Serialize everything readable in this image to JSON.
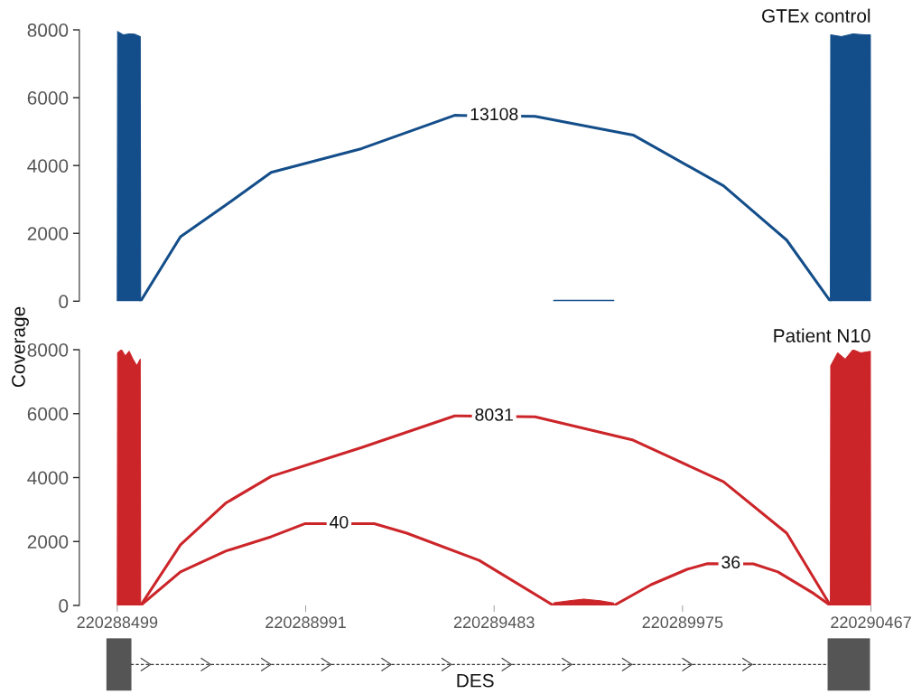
{
  "chart_data": [
    {
      "type": "area",
      "title": "GTEx control",
      "ylabel": "Coverage",
      "xlim": [
        220288400,
        220290467
      ],
      "ylim": [
        0,
        8000
      ],
      "yticks": [
        0,
        2000,
        4000,
        6000,
        8000
      ],
      "tick_labels": "y",
      "series": [
        {
          "color": "#144e8a",
          "x": [
            220288499,
            220288500,
            220288515,
            220288530,
            220288545,
            220288559,
            220288560
          ],
          "values": [
            0,
            7950,
            7850,
            7880,
            7870,
            7800,
            0
          ]
        },
        {
          "color": "#144e8a",
          "x": [
            220289638,
            220289639,
            220289720,
            220289795,
            220289796
          ],
          "values": [
            0,
            30,
            30,
            30,
            0
          ]
        },
        {
          "color": "#144e8a",
          "x": [
            220290361,
            220290362,
            220290390,
            220290420,
            220290450,
            220290466,
            220290467
          ],
          "values": [
            0,
            7850,
            7800,
            7880,
            7850,
            7850,
            0
          ]
        },
        {
          "type": "line",
          "color": "#144e8a",
          "x": [
            220288560,
            220288664,
            220288782,
            220288901,
            220289137,
            220289380,
            220289590,
            220289846,
            220290082,
            220290247,
            220290361
          ],
          "values": [
            0,
            1900,
            2830,
            3800,
            4500,
            5480,
            5450,
            4900,
            3400,
            1800,
            0
          ]
        }
      ],
      "annotations": [
        {
          "text": "13108",
          "x": 220289483,
          "y": 5470
        }
      ]
    },
    {
      "type": "area",
      "title": "Patient N10",
      "xlabel": "DES",
      "xlim": [
        220288400,
        220290467
      ],
      "ylim": [
        0,
        8000
      ],
      "yticks": [
        0,
        2000,
        4000,
        6000,
        8000
      ],
      "xticks": [
        220288499,
        220288991,
        220289483,
        220289975,
        220290467
      ],
      "series": [
        {
          "color": "#cc2529",
          "x": [
            220288499,
            220288500,
            220288510,
            220288520,
            220288530,
            220288540,
            220288550,
            220288559,
            220288560
          ],
          "values": [
            0,
            7900,
            8000,
            7800,
            7950,
            7700,
            7500,
            7700,
            0
          ]
        },
        {
          "color": "#cc2529",
          "x": [
            220289638,
            220289639,
            220289680,
            220289717,
            220289760,
            220289795,
            220289796
          ],
          "values": [
            0,
            80,
            150,
            200,
            150,
            80,
            0
          ]
        },
        {
          "color": "#cc2529",
          "x": [
            220290361,
            220290362,
            220290380,
            220290400,
            220290420,
            220290440,
            220290466,
            220290467
          ],
          "values": [
            0,
            7500,
            7900,
            7700,
            8000,
            7900,
            7950,
            0
          ]
        },
        {
          "type": "line",
          "color": "#cc2529",
          "x": [
            220288560,
            220288664,
            220288782,
            220288901,
            220289137,
            220289380,
            220289590,
            220289846,
            220290082,
            220290247,
            220290361
          ],
          "values": [
            0,
            1900,
            3200,
            4040,
            4940,
            5930,
            5900,
            5170,
            3870,
            2260,
            0
          ]
        },
        {
          "type": "line",
          "color": "#cc2529",
          "x": [
            220288560,
            220288664,
            220288782,
            220288901,
            220288990,
            220289170,
            220289255,
            220289444,
            220289638
          ],
          "values": [
            0,
            1050,
            1700,
            2150,
            2560,
            2560,
            2260,
            1410,
            0
          ]
        },
        {
          "type": "line",
          "color": "#cc2529",
          "x": [
            220289796,
            220289893,
            220289987,
            220290040,
            220290160,
            220290224,
            220290318,
            220290361
          ],
          "values": [
            0,
            650,
            1130,
            1310,
            1300,
            1050,
            370,
            0
          ]
        }
      ],
      "annotations": [
        {
          "text": "8031",
          "x": 220289483,
          "y": 5920
        },
        {
          "text": "40",
          "x": 220289078,
          "y": 2560
        },
        {
          "text": "36",
          "x": 220290101,
          "y": 1305
        }
      ]
    }
  ]
}
